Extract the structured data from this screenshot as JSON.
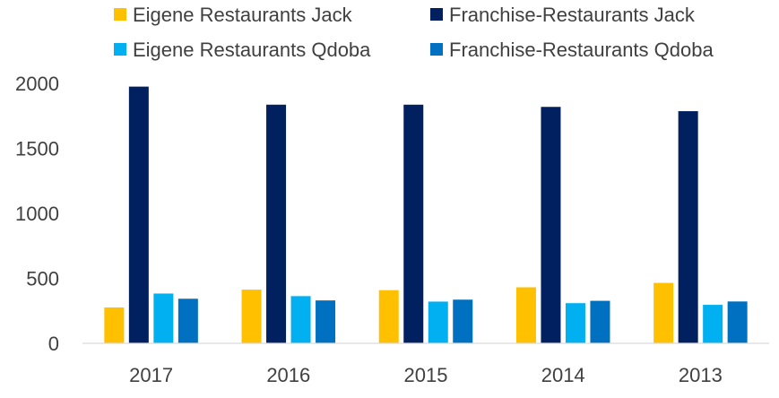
{
  "chart_data": {
    "type": "bar",
    "title": "",
    "xlabel": "",
    "ylabel": "",
    "categories": [
      "2017",
      "2016",
      "2015",
      "2014",
      "2013"
    ],
    "ylim": [
      0,
      2000
    ],
    "yticks": [
      0,
      500,
      1000,
      1500,
      2000
    ],
    "grid": false,
    "legend": "top",
    "series": [
      {
        "name": "Eigene Restaurants Jack",
        "color": "#FFC000",
        "values": [
          276,
          413,
          409,
          431,
          465
        ]
      },
      {
        "name": "Franchise-Restaurants Jack",
        "color": "#002060",
        "values": [
          1975,
          1836,
          1836,
          1819,
          1786
        ]
      },
      {
        "name": "Eigene Restaurants Qdoba",
        "color": "#00B0F0",
        "values": [
          383,
          363,
          321,
          309,
          296
        ]
      },
      {
        "name": "Franchise-Restaurants Qdoba",
        "color": "#0070C0",
        "values": [
          343,
          330,
          336,
          327,
          322
        ]
      }
    ]
  }
}
